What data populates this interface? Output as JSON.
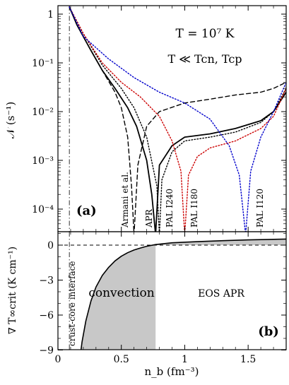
{
  "chart_data": [
    {
      "type": "line",
      "panel_label": "(a)",
      "ylabel": "𝒩 (s⁻¹)",
      "yscale": "log",
      "ylim": [
        3e-05,
        1.5
      ],
      "xlim": [
        0,
        1.8
      ],
      "annotations": [
        "T = 10⁷ K",
        "T ≪ Tcn, Tcp"
      ],
      "yticks": [
        {
          "value": 1,
          "label": "1"
        },
        {
          "value": 0.1,
          "label": "10⁻¹"
        },
        {
          "value": 0.01,
          "label": "10⁻²"
        },
        {
          "value": 0.001,
          "label": "10⁻³"
        },
        {
          "value": 0.0001,
          "label": "10⁻⁴"
        }
      ],
      "series": [
        {
          "name": "Armani et al.",
          "color": "#000000",
          "style": "dashed",
          "x": [
            0.09,
            0.15,
            0.25,
            0.35,
            0.45,
            0.5,
            0.55,
            0.58,
            0.6,
            0.63,
            0.7,
            0.8,
            1.0,
            1.2,
            1.4,
            1.6,
            1.7,
            1.8
          ],
          "y": [
            1.4,
            0.6,
            0.2,
            0.07,
            0.025,
            0.012,
            0.003,
            0.0003,
            3e-05,
            0.0008,
            0.005,
            0.01,
            0.015,
            0.018,
            0.022,
            0.025,
            0.03,
            0.04
          ]
        },
        {
          "name": "APR",
          "color": "#000000",
          "style": "solid",
          "x": [
            0.09,
            0.15,
            0.25,
            0.35,
            0.45,
            0.55,
            0.62,
            0.7,
            0.74,
            0.77,
            0.8,
            0.9,
            1.0,
            1.2,
            1.4,
            1.6,
            1.7,
            1.8
          ],
          "y": [
            1.4,
            0.6,
            0.2,
            0.07,
            0.03,
            0.012,
            0.005,
            0.001,
            0.0002,
            3e-05,
            0.0008,
            0.002,
            0.003,
            0.0035,
            0.0045,
            0.0065,
            0.01,
            0.025
          ]
        },
        {
          "name": "PAL I240",
          "color": "#000000",
          "style": "dotted",
          "x": [
            0.09,
            0.2,
            0.35,
            0.5,
            0.6,
            0.7,
            0.78,
            0.8,
            0.82,
            0.9,
            1.0,
            1.2,
            1.4,
            1.6,
            1.7,
            1.8
          ],
          "y": [
            1.4,
            0.4,
            0.09,
            0.03,
            0.012,
            0.003,
            0.0003,
            3e-05,
            0.0004,
            0.0015,
            0.0025,
            0.003,
            0.0038,
            0.006,
            0.01,
            0.03
          ]
        },
        {
          "name": "PAL I180",
          "color": "#cc0000",
          "style": "dotted",
          "x": [
            0.09,
            0.2,
            0.35,
            0.5,
            0.65,
            0.8,
            0.9,
            0.97,
            1.0,
            1.03,
            1.1,
            1.2,
            1.4,
            1.6,
            1.7,
            1.8
          ],
          "y": [
            1.4,
            0.4,
            0.1,
            0.04,
            0.02,
            0.008,
            0.0025,
            0.0006,
            3e-05,
            0.0005,
            0.0012,
            0.0018,
            0.0025,
            0.0045,
            0.008,
            0.03
          ]
        },
        {
          "name": "PAL I120",
          "color": "#0000cc",
          "style": "dotted",
          "x": [
            0.09,
            0.2,
            0.4,
            0.6,
            0.8,
            1.0,
            1.2,
            1.35,
            1.43,
            1.48,
            1.52,
            1.6,
            1.7,
            1.8
          ],
          "y": [
            1.4,
            0.35,
            0.12,
            0.05,
            0.025,
            0.015,
            0.007,
            0.002,
            0.0005,
            3e-05,
            0.0006,
            0.003,
            0.01,
            0.04
          ]
        }
      ]
    },
    {
      "type": "area",
      "panel_label": "(b)",
      "xlabel": "n_b (fm⁻³)",
      "ylabel": "∇ T∞crit (K cm⁻¹)",
      "xlim": [
        0,
        1.8
      ],
      "ylim": [
        -10,
        1
      ],
      "shaded_region_label": "convection",
      "annotations": [
        "EOS APR",
        "crust-core interface"
      ],
      "xticks": [
        {
          "value": 0,
          "label": "0"
        },
        {
          "value": 0.5,
          "label": "0.5"
        },
        {
          "value": 1,
          "label": "1"
        },
        {
          "value": 1.5,
          "label": "1.5"
        }
      ],
      "yticks": [
        {
          "value": 0,
          "label": "0"
        },
        {
          "value": -3,
          "label": "−3"
        },
        {
          "value": -6,
          "label": "−6"
        },
        {
          "value": -9,
          "label": "−9"
        }
      ],
      "crust_core_interface_x": 0.09,
      "convection_range": [
        0.09,
        0.77
      ],
      "series": [
        {
          "name": "EOS APR",
          "color": "#000000",
          "x": [
            0.17,
            0.19,
            0.22,
            0.26,
            0.3,
            0.35,
            0.4,
            0.45,
            0.5,
            0.55,
            0.6,
            0.65,
            0.7,
            0.77,
            0.9,
            1.1,
            1.3,
            1.5,
            1.7,
            1.8
          ],
          "y": [
            -10,
            -8.3,
            -6.5,
            -4.8,
            -3.6,
            -2.6,
            -1.9,
            -1.35,
            -0.95,
            -0.65,
            -0.42,
            -0.25,
            -0.1,
            0.05,
            0.2,
            0.3,
            0.38,
            0.45,
            0.5,
            0.52
          ]
        }
      ]
    }
  ]
}
